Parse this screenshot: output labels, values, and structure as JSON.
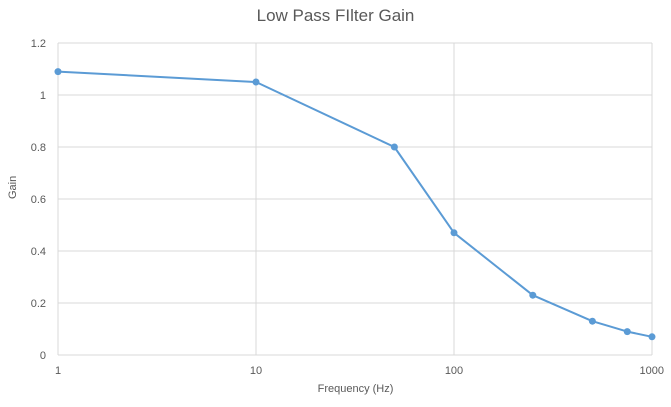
{
  "chart_data": {
    "type": "line",
    "title": "Low Pass FIlter Gain",
    "xlabel": "Frequency (Hz)",
    "ylabel": "Gain",
    "x_scale": "log",
    "xlim": [
      1,
      1000
    ],
    "ylim": [
      0,
      1.2
    ],
    "x_ticks": [
      "1",
      "10",
      "100",
      "1000"
    ],
    "y_ticks": [
      "0",
      "0.2",
      "0.4",
      "0.6",
      "0.8",
      "1",
      "1.2"
    ],
    "grid": true,
    "legend": "none",
    "series": [
      {
        "x": [
          1,
          10,
          50,
          100,
          250,
          500,
          750,
          1000
        ],
        "y": [
          1.09,
          1.05,
          0.8,
          0.47,
          0.23,
          0.13,
          0.09,
          0.07
        ]
      }
    ],
    "colors": {
      "line": "#5B9BD5",
      "grid": "#D9D9D9",
      "text": "#595959"
    }
  }
}
